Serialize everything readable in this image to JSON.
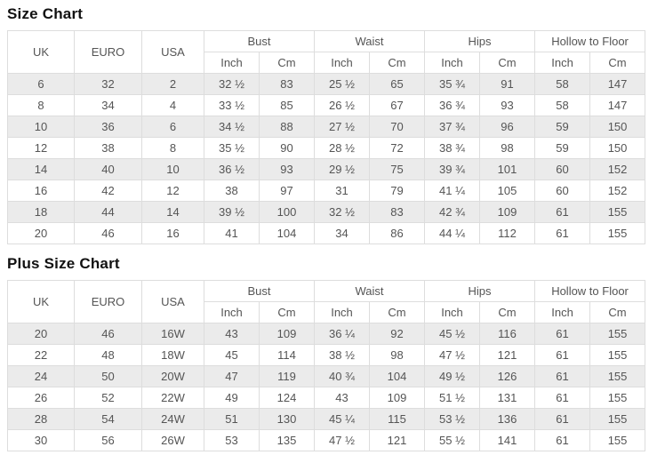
{
  "colors": {
    "stripe": "#ebebeb",
    "border": "#dddddd",
    "text": "#555555",
    "title": "#111111"
  },
  "tables": [
    {
      "title": "Size Chart",
      "base_headers": [
        "UK",
        "EURO",
        "USA"
      ],
      "groups": [
        "Bust",
        "Waist",
        "Hips",
        "Hollow to Floor"
      ],
      "sub_headers": [
        "Inch",
        "Cm"
      ],
      "rows": [
        [
          "6",
          "32",
          "2",
          "32 ½",
          "83",
          "25 ½",
          "65",
          "35 ¾",
          "91",
          "58",
          "147"
        ],
        [
          "8",
          "34",
          "4",
          "33 ½",
          "85",
          "26 ½",
          "67",
          "36 ¾",
          "93",
          "58",
          "147"
        ],
        [
          "10",
          "36",
          "6",
          "34 ½",
          "88",
          "27 ½",
          "70",
          "37 ¾",
          "96",
          "59",
          "150"
        ],
        [
          "12",
          "38",
          "8",
          "35 ½",
          "90",
          "28 ½",
          "72",
          "38 ¾",
          "98",
          "59",
          "150"
        ],
        [
          "14",
          "40",
          "10",
          "36 ½",
          "93",
          "29 ½",
          "75",
          "39 ¾",
          "101",
          "60",
          "152"
        ],
        [
          "16",
          "42",
          "12",
          "38",
          "97",
          "31",
          "79",
          "41 ¼",
          "105",
          "60",
          "152"
        ],
        [
          "18",
          "44",
          "14",
          "39 ½",
          "100",
          "32 ½",
          "83",
          "42 ¾",
          "109",
          "61",
          "155"
        ],
        [
          "20",
          "46",
          "16",
          "41",
          "104",
          "34",
          "86",
          "44 ¼",
          "112",
          "61",
          "155"
        ]
      ]
    },
    {
      "title": "Plus Size Chart",
      "base_headers": [
        "UK",
        "EURO",
        "USA"
      ],
      "groups": [
        "Bust",
        "Waist",
        "Hips",
        "Hollow to Floor"
      ],
      "sub_headers": [
        "Inch",
        "Cm"
      ],
      "rows": [
        [
          "20",
          "46",
          "16W",
          "43",
          "109",
          "36 ¼",
          "92",
          "45 ½",
          "116",
          "61",
          "155"
        ],
        [
          "22",
          "48",
          "18W",
          "45",
          "114",
          "38 ½",
          "98",
          "47 ½",
          "121",
          "61",
          "155"
        ],
        [
          "24",
          "50",
          "20W",
          "47",
          "119",
          "40 ¾",
          "104",
          "49 ½",
          "126",
          "61",
          "155"
        ],
        [
          "26",
          "52",
          "22W",
          "49",
          "124",
          "43",
          "109",
          "51 ½",
          "131",
          "61",
          "155"
        ],
        [
          "28",
          "54",
          "24W",
          "51",
          "130",
          "45 ¼",
          "115",
          "53 ½",
          "136",
          "61",
          "155"
        ],
        [
          "30",
          "56",
          "26W",
          "53",
          "135",
          "47 ½",
          "121",
          "55 ½",
          "141",
          "61",
          "155"
        ]
      ]
    }
  ]
}
